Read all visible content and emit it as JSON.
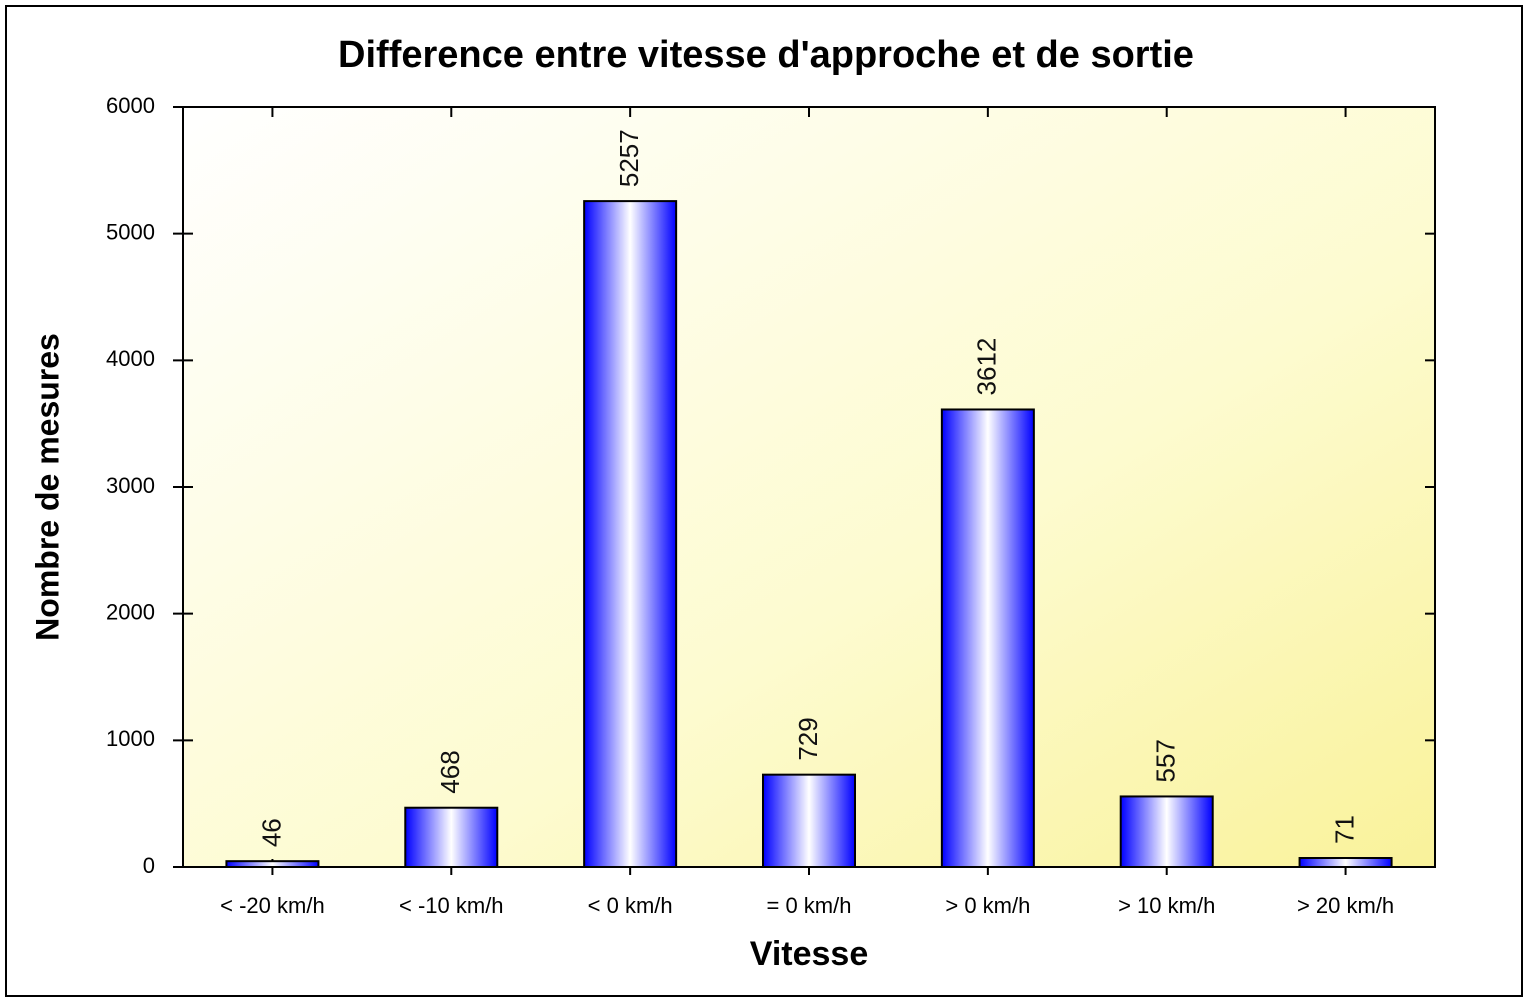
{
  "chart_data": {
    "type": "bar",
    "title": "Difference entre vitesse d'approche et de sortie",
    "x_label": "Vitesse",
    "y_label": "Nombre de mesures",
    "categories": [
      "< -20 km/h",
      "< -10 km/h",
      "< 0 km/h",
      "= 0 km/h",
      "> 0 km/h",
      "> 10 km/h",
      "> 20 km/h"
    ],
    "values": [
      46,
      468,
      5257,
      729,
      3612,
      557,
      71
    ],
    "color": "#0000ff",
    "ylim": [
      0,
      6000
    ],
    "yticks": [
      0,
      1000,
      2000,
      3000,
      4000,
      5000,
      6000
    ],
    "grid": false
  }
}
